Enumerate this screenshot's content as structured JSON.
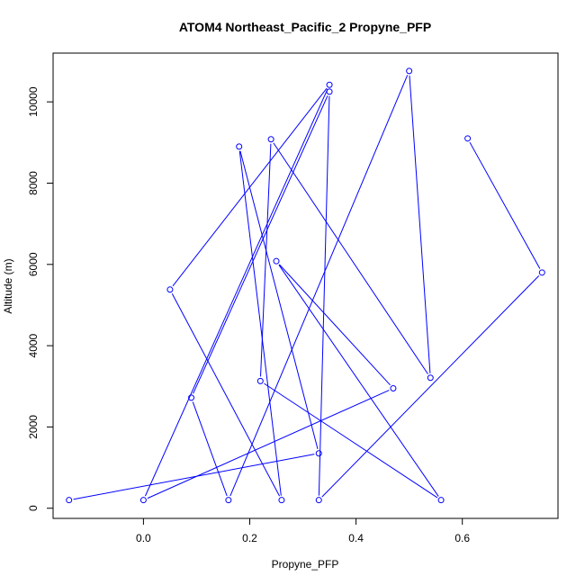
{
  "chart_data": {
    "type": "line",
    "title": "ATOM4 Northeast_Pacific_2 Propyne_PFP",
    "xlabel": "Propyne_PFP",
    "ylabel": "Altitude (m)",
    "xlim": [
      -0.17,
      0.78
    ],
    "ylim": [
      -250,
      11200
    ],
    "x_ticks": [
      0.0,
      0.2,
      0.4,
      0.6
    ],
    "x_tick_labels": [
      "0.0",
      "0.2",
      "0.4",
      "0.6"
    ],
    "y_ticks": [
      0,
      2000,
      4000,
      6000,
      8000,
      10000
    ],
    "y_tick_labels": [
      "0",
      "2000",
      "4000",
      "6000",
      "8000",
      "10000"
    ],
    "grid": false,
    "series": [
      {
        "color": "#0000ff",
        "marker": "open-circle",
        "x": [
          -0.14,
          0.33,
          0.18,
          0.26,
          0.05,
          0.35,
          0.0,
          0.47,
          0.25,
          0.56,
          0.22,
          0.24,
          0.54,
          0.5,
          0.16,
          0.09,
          0.35,
          0.33,
          0.75,
          0.61
        ],
        "y": [
          200,
          1350,
          8900,
          200,
          5380,
          10420,
          200,
          2950,
          6080,
          200,
          3130,
          9080,
          3210,
          10760,
          200,
          2720,
          10250,
          200,
          5800,
          9100
        ]
      }
    ]
  }
}
